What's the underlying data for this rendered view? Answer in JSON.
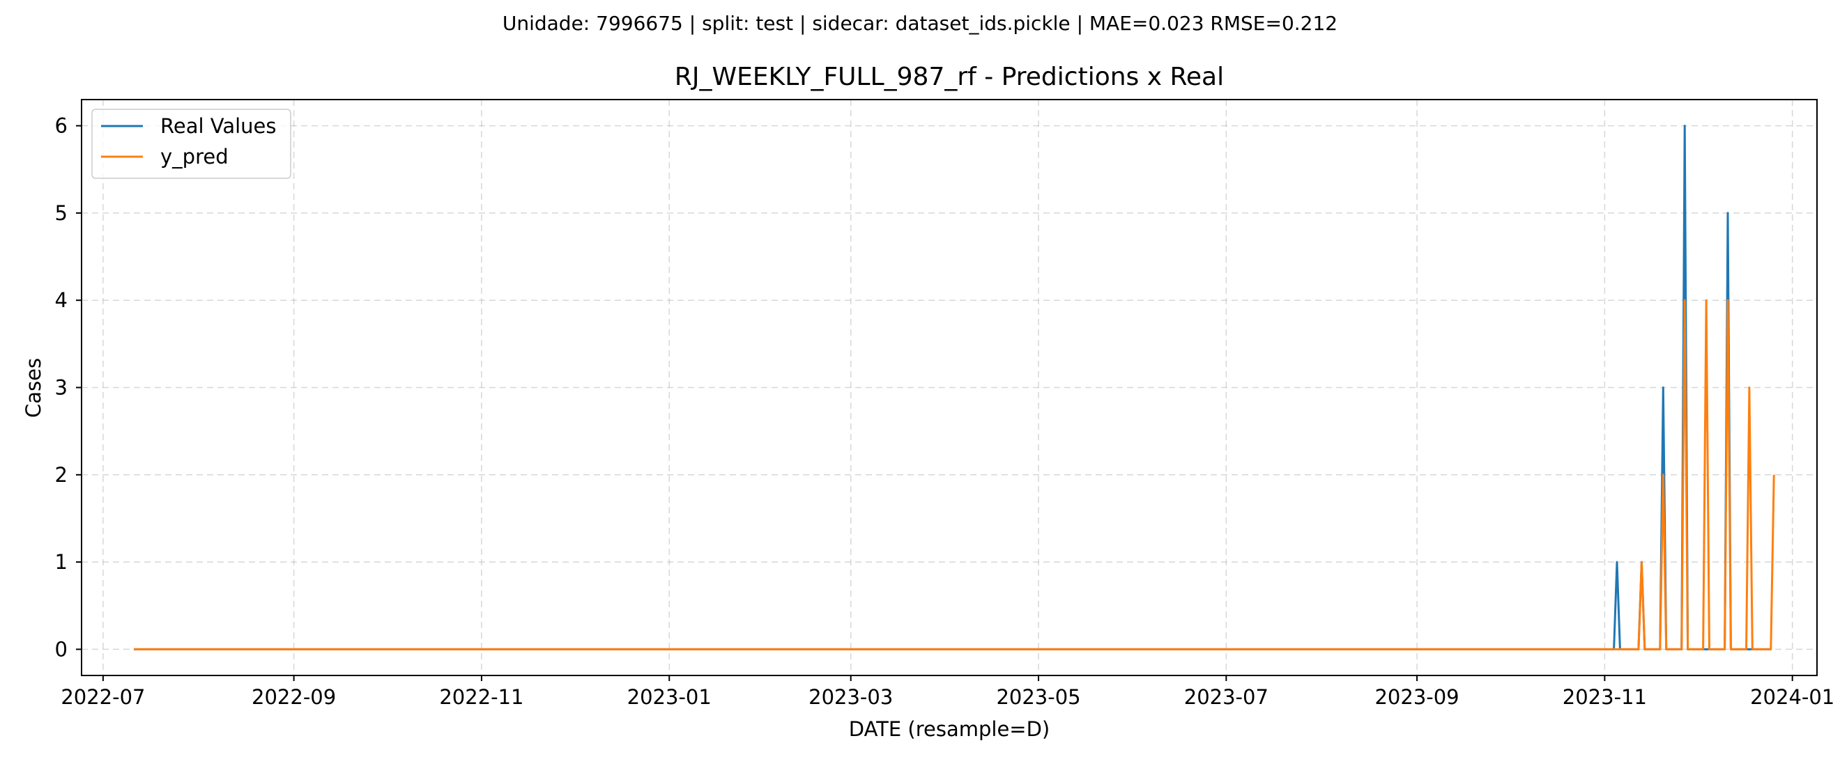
{
  "chart_data": {
    "type": "line",
    "suptitle": "Unidade: 7996675 | split: test | sidecar: dataset_ids.pickle | MAE=0.023  RMSE=0.212",
    "title": "RJ_WEEKLY_FULL_987_rf - Predictions x Real",
    "xlabel": "DATE (resample=D)",
    "ylabel": "Cases",
    "xlim": [
      "2022-06-24",
      "2024-01-09"
    ],
    "ylim": [
      -0.3,
      6.3
    ],
    "x_ticks": [
      "2022-07",
      "2022-09",
      "2022-11",
      "2023-01",
      "2023-03",
      "2023-05",
      "2023-07",
      "2023-09",
      "2023-11",
      "2024-01"
    ],
    "y_ticks": [
      0,
      1,
      2,
      3,
      4,
      5,
      6
    ],
    "grid": true,
    "legend_position": "upper-left",
    "series": [
      {
        "name": "Real Values",
        "color": "#1f77b4",
        "points": [
          [
            "2022-07-11",
            0
          ],
          [
            "2023-11-04",
            0
          ],
          [
            "2023-11-05",
            1
          ],
          [
            "2023-11-06",
            0
          ],
          [
            "2023-11-12",
            0
          ],
          [
            "2023-11-13",
            1
          ],
          [
            "2023-11-14",
            0
          ],
          [
            "2023-11-19",
            0
          ],
          [
            "2023-11-20",
            3
          ],
          [
            "2023-11-21",
            0
          ],
          [
            "2023-11-26",
            0
          ],
          [
            "2023-11-27",
            6
          ],
          [
            "2023-11-28",
            0
          ],
          [
            "2023-12-10",
            0
          ],
          [
            "2023-12-11",
            5
          ],
          [
            "2023-12-12",
            0
          ],
          [
            "2023-12-25",
            0
          ]
        ]
      },
      {
        "name": "y_pred",
        "color": "#ff7f0e",
        "points": [
          [
            "2022-07-11",
            0
          ],
          [
            "2023-11-12",
            0
          ],
          [
            "2023-11-13",
            1
          ],
          [
            "2023-11-14",
            0
          ],
          [
            "2023-11-19",
            0
          ],
          [
            "2023-11-20",
            2
          ],
          [
            "2023-11-21",
            0
          ],
          [
            "2023-11-26",
            0
          ],
          [
            "2023-11-27",
            4
          ],
          [
            "2023-11-28",
            0
          ],
          [
            "2023-12-03",
            0
          ],
          [
            "2023-12-04",
            4
          ],
          [
            "2023-12-05",
            0
          ],
          [
            "2023-12-10",
            0
          ],
          [
            "2023-12-11",
            4
          ],
          [
            "2023-12-12",
            0
          ],
          [
            "2023-12-17",
            0
          ],
          [
            "2023-12-18",
            3
          ],
          [
            "2023-12-19",
            0
          ],
          [
            "2023-12-25",
            0
          ],
          [
            "2023-12-26",
            2
          ]
        ]
      }
    ]
  }
}
